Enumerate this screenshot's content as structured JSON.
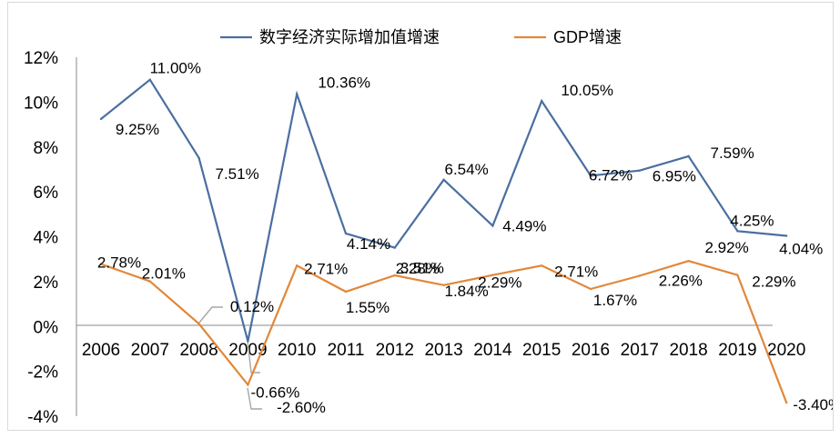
{
  "chart_data": {
    "type": "line",
    "title": "",
    "xlabel": "",
    "ylabel": "",
    "categories": [
      "2006",
      "2007",
      "2008",
      "2009",
      "2010",
      "2011",
      "2012",
      "2013",
      "2014",
      "2015",
      "2016",
      "2017",
      "2018",
      "2019",
      "2020"
    ],
    "ylim": [
      -4,
      12
    ],
    "yticks": [
      "12%",
      "10%",
      "8%",
      "6%",
      "4%",
      "2%",
      "0%",
      "-2%",
      "-4%"
    ],
    "legend": {
      "position": "top"
    },
    "grid": false,
    "series": [
      {
        "name": "数字经济实际增加值增速",
        "color": "#4a6fa0",
        "values": [
          9.25,
          11.0,
          7.51,
          -0.66,
          10.36,
          4.14,
          3.51,
          6.54,
          4.49,
          10.05,
          6.72,
          6.95,
          7.59,
          4.25,
          4.04
        ],
        "labels": [
          "9.25%",
          "11.00%",
          "7.51%",
          "-0.66%",
          "10.36%",
          "4.14%",
          "3.51%",
          "6.54%",
          "4.49%",
          "10.05%",
          "6.72%",
          "6.95%",
          "7.59%",
          "4.25%",
          "4.04%"
        ]
      },
      {
        "name": "GDP增速",
        "color": "#e1873a",
        "values": [
          2.78,
          2.01,
          0.12,
          -2.6,
          2.71,
          1.55,
          2.28,
          1.84,
          2.29,
          2.71,
          1.67,
          2.26,
          2.92,
          2.29,
          -3.4
        ],
        "labels": [
          "2.78%",
          "2.01%",
          "0.12%",
          "-2.60%",
          "2.71%",
          "1.55%",
          "2.28%",
          "1.84%",
          "2.29%",
          "2.71%",
          "1.67%",
          "2.26%",
          "2.92%",
          "2.29%",
          "-3.40%"
        ]
      }
    ]
  }
}
